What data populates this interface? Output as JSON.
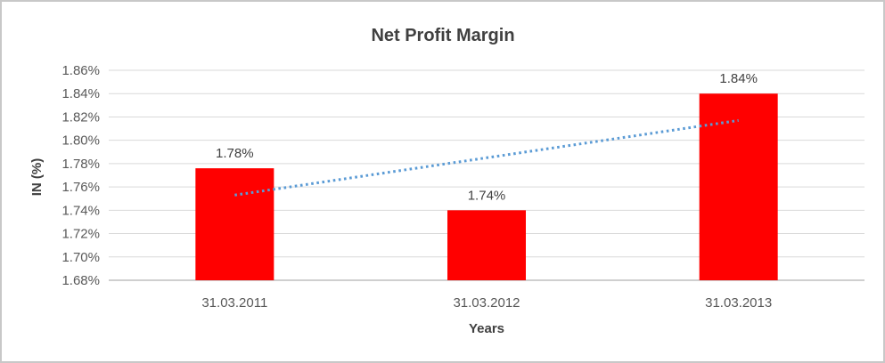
{
  "chart": {
    "title": "Net Profit Margin",
    "x_axis_title": "Years",
    "y_axis_title": "IN (%)",
    "colors": {
      "bar": "#ff0000",
      "trendline": "#5b9bd5",
      "gridline": "#d9d9d9",
      "axis_line": "#bfbfbf",
      "title_text": "#404040",
      "tick_text": "#595959",
      "frame_border": "#c8c8c8",
      "background": "#ffffff"
    }
  },
  "chart_data": {
    "type": "bar",
    "title": "Net Profit Margin",
    "xlabel": "Years",
    "ylabel": "IN (%)",
    "categories": [
      "31.03.2011",
      "31.03.2012",
      "31.03.2013"
    ],
    "values": [
      1.78,
      1.74,
      1.84
    ],
    "data_labels": [
      "1.78%",
      "1.74%",
      "1.84%"
    ],
    "bar_plotted_values": [
      1.776,
      1.74,
      1.84
    ],
    "unit": "percent",
    "ylim": [
      1.68,
      1.86
    ],
    "ytick_step": 0.02,
    "ytick_values": [
      1.86,
      1.84,
      1.82,
      1.8,
      1.78,
      1.76,
      1.74,
      1.72,
      1.7,
      1.68
    ],
    "ytick_labels": [
      "1.86%",
      "1.84%",
      "1.82%",
      "1.80%",
      "1.78%",
      "1.76%",
      "1.74%",
      "1.72%",
      "1.70%",
      "1.68%"
    ],
    "grid": true,
    "legend": false,
    "trendline": {
      "type": "linear",
      "style": "dotted",
      "start_value": 1.753,
      "end_value": 1.817
    }
  }
}
